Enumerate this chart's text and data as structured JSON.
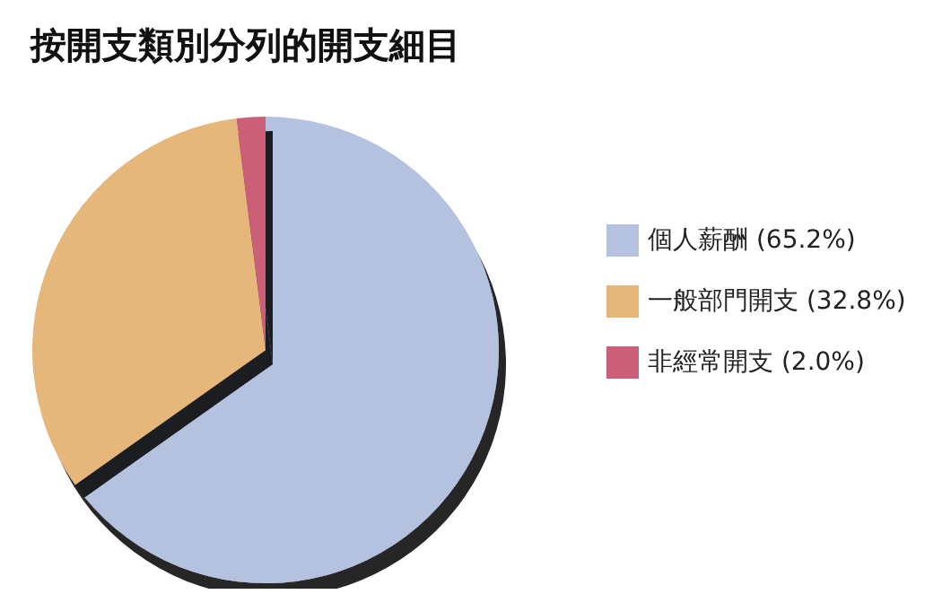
{
  "chart_data": {
    "type": "pie",
    "title": "按開支類別分列的開支細目",
    "categories": [
      "個人薪酬 (65.2%)",
      "一般部門開支 (32.8%)",
      "非經常開支 (2.0%)"
    ],
    "values": [
      65.2,
      32.8,
      2.0
    ],
    "colors": [
      "#b4c2e0",
      "#e6b77a",
      "#cc5f78"
    ],
    "legend": "right"
  }
}
